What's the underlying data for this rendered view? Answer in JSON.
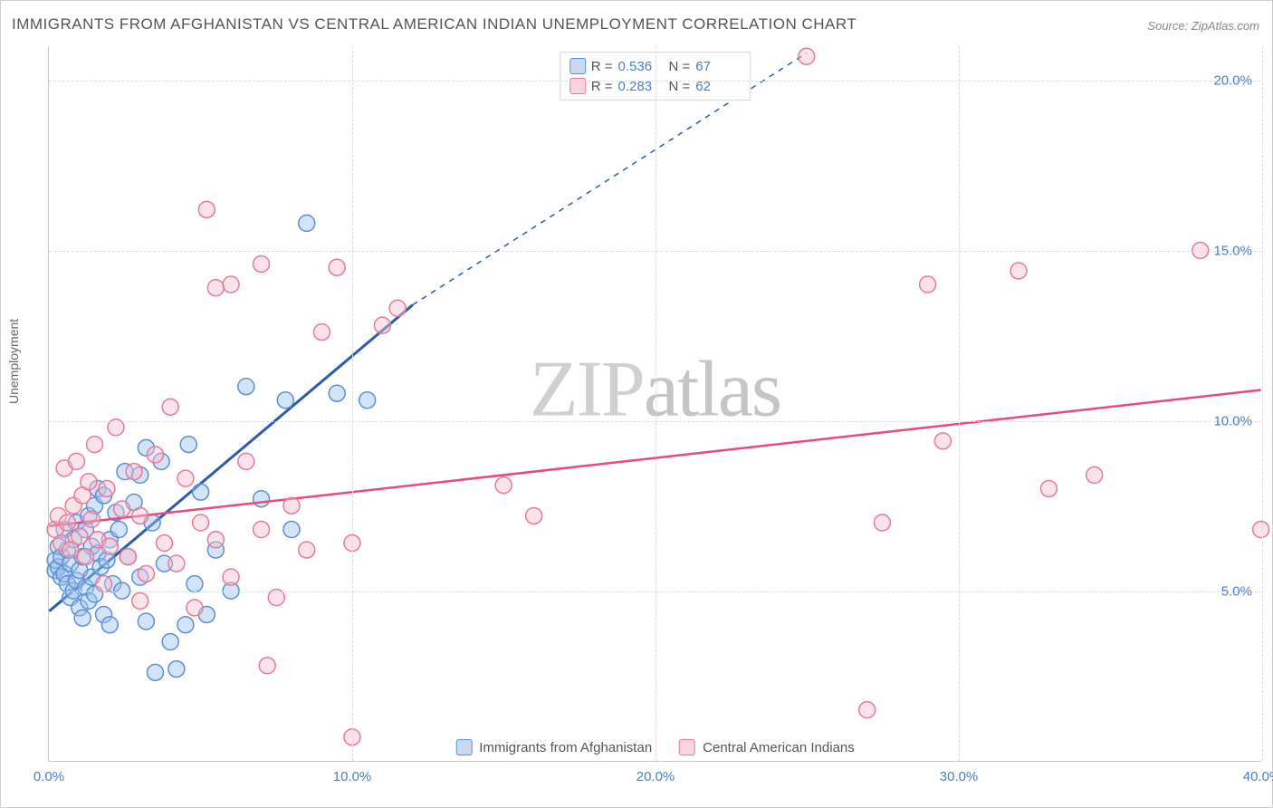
{
  "title": "IMMIGRANTS FROM AFGHANISTAN VS CENTRAL AMERICAN INDIAN UNEMPLOYMENT CORRELATION CHART",
  "source_label": "Source:",
  "source_value": "ZipAtlas.com",
  "watermark": "ZIPatlas",
  "yaxis_title": "Unemployment",
  "chart": {
    "type": "scatter",
    "xlim": [
      0,
      40
    ],
    "ylim": [
      0,
      21
    ],
    "xticks": [
      0,
      10,
      20,
      30,
      40
    ],
    "xtick_labels": [
      "0.0%",
      "10.0%",
      "20.0%",
      "30.0%",
      "40.0%"
    ],
    "yticks": [
      5,
      10,
      15,
      20
    ],
    "ytick_labels": [
      "5.0%",
      "10.0%",
      "15.0%",
      "20.0%"
    ],
    "background_color": "#ffffff",
    "grid_color": "#dcdcdc",
    "grid_style": "dashed",
    "marker_radius": 9,
    "marker_opacity": 0.45,
    "marker_stroke_width": 1.5
  },
  "series": [
    {
      "id": "afghan",
      "label": "Immigrants from Afghanistan",
      "color_fill": "#9ec3ec",
      "color_stroke": "#5b8fd6",
      "trend_color": "#2d5ca8",
      "trend_width": 3,
      "trend_solid_x": [
        0,
        12
      ],
      "trend_solid_y": [
        4.4,
        13.4
      ],
      "trend_dash_x": [
        12,
        25
      ],
      "trend_dash_y": [
        13.4,
        20.8
      ],
      "corr_r": "0.536",
      "corr_n": "67",
      "points": [
        [
          0.2,
          5.6
        ],
        [
          0.2,
          5.9
        ],
        [
          0.3,
          5.7
        ],
        [
          0.3,
          6.3
        ],
        [
          0.4,
          5.4
        ],
        [
          0.4,
          6.0
        ],
        [
          0.5,
          5.5
        ],
        [
          0.5,
          6.8
        ],
        [
          0.6,
          5.2
        ],
        [
          0.6,
          6.2
        ],
        [
          0.7,
          5.8
        ],
        [
          0.7,
          4.8
        ],
        [
          0.8,
          5.0
        ],
        [
          0.8,
          6.5
        ],
        [
          0.9,
          5.3
        ],
        [
          0.9,
          7.0
        ],
        [
          1.0,
          5.6
        ],
        [
          1.0,
          4.5
        ],
        [
          1.1,
          6.0
        ],
        [
          1.1,
          4.2
        ],
        [
          1.2,
          6.8
        ],
        [
          1.2,
          5.1
        ],
        [
          1.3,
          7.2
        ],
        [
          1.3,
          4.7
        ],
        [
          1.4,
          6.3
        ],
        [
          1.4,
          5.4
        ],
        [
          1.5,
          7.5
        ],
        [
          1.5,
          4.9
        ],
        [
          1.6,
          6.1
        ],
        [
          1.6,
          8.0
        ],
        [
          1.7,
          5.7
        ],
        [
          1.8,
          4.3
        ],
        [
          1.8,
          7.8
        ],
        [
          1.9,
          5.9
        ],
        [
          2.0,
          6.5
        ],
        [
          2.0,
          4.0
        ],
        [
          2.1,
          5.2
        ],
        [
          2.2,
          7.3
        ],
        [
          2.3,
          6.8
        ],
        [
          2.4,
          5.0
        ],
        [
          2.5,
          8.5
        ],
        [
          2.6,
          6.0
        ],
        [
          2.8,
          7.6
        ],
        [
          3.0,
          5.4
        ],
        [
          3.0,
          8.4
        ],
        [
          3.2,
          4.1
        ],
        [
          3.2,
          9.2
        ],
        [
          3.4,
          7.0
        ],
        [
          3.5,
          2.6
        ],
        [
          3.7,
          8.8
        ],
        [
          3.8,
          5.8
        ],
        [
          4.0,
          3.5
        ],
        [
          4.2,
          2.7
        ],
        [
          4.5,
          4.0
        ],
        [
          4.6,
          9.3
        ],
        [
          4.8,
          5.2
        ],
        [
          5.0,
          7.9
        ],
        [
          5.2,
          4.3
        ],
        [
          5.5,
          6.2
        ],
        [
          6.0,
          5.0
        ],
        [
          6.5,
          11.0
        ],
        [
          7.0,
          7.7
        ],
        [
          7.8,
          10.6
        ],
        [
          8.0,
          6.8
        ],
        [
          8.5,
          15.8
        ],
        [
          9.5,
          10.8
        ],
        [
          10.5,
          10.6
        ]
      ]
    },
    {
      "id": "cai",
      "label": "Central American Indians",
      "color_fill": "#f4c2ce",
      "color_stroke": "#e67a99",
      "trend_color": "#e84a7a",
      "trend_width": 2.5,
      "trend_solid_x": [
        0,
        40
      ],
      "trend_solid_y": [
        6.9,
        10.9
      ],
      "trend_dash_x": null,
      "trend_dash_y": null,
      "corr_r": "0.283",
      "corr_n": "62",
      "points": [
        [
          0.2,
          6.8
        ],
        [
          0.3,
          7.2
        ],
        [
          0.4,
          6.4
        ],
        [
          0.5,
          8.6
        ],
        [
          0.6,
          7.0
        ],
        [
          0.7,
          6.2
        ],
        [
          0.8,
          7.5
        ],
        [
          0.9,
          8.8
        ],
        [
          1.0,
          6.6
        ],
        [
          1.1,
          7.8
        ],
        [
          1.2,
          6.0
        ],
        [
          1.3,
          8.2
        ],
        [
          1.4,
          7.1
        ],
        [
          1.5,
          9.3
        ],
        [
          1.6,
          6.5
        ],
        [
          1.8,
          5.2
        ],
        [
          1.9,
          8.0
        ],
        [
          2.0,
          6.3
        ],
        [
          2.2,
          9.8
        ],
        [
          2.4,
          7.4
        ],
        [
          2.6,
          6.0
        ],
        [
          2.8,
          8.5
        ],
        [
          3.0,
          4.7
        ],
        [
          3.0,
          7.2
        ],
        [
          3.2,
          5.5
        ],
        [
          3.5,
          9.0
        ],
        [
          3.8,
          6.4
        ],
        [
          4.0,
          10.4
        ],
        [
          4.2,
          5.8
        ],
        [
          4.5,
          8.3
        ],
        [
          4.8,
          4.5
        ],
        [
          5.0,
          7.0
        ],
        [
          5.2,
          16.2
        ],
        [
          5.5,
          6.5
        ],
        [
          5.5,
          13.9
        ],
        [
          6.0,
          5.4
        ],
        [
          6.0,
          14.0
        ],
        [
          6.5,
          8.8
        ],
        [
          7.0,
          6.8
        ],
        [
          7.0,
          14.6
        ],
        [
          7.2,
          2.8
        ],
        [
          7.5,
          4.8
        ],
        [
          8.0,
          7.5
        ],
        [
          8.5,
          6.2
        ],
        [
          9.0,
          12.6
        ],
        [
          9.5,
          14.5
        ],
        [
          10.0,
          6.4
        ],
        [
          10.0,
          0.7
        ],
        [
          11.0,
          12.8
        ],
        [
          11.5,
          13.3
        ],
        [
          15.0,
          8.1
        ],
        [
          16.0,
          7.2
        ],
        [
          25.0,
          20.7
        ],
        [
          27.0,
          1.5
        ],
        [
          27.5,
          7.0
        ],
        [
          29.0,
          14.0
        ],
        [
          29.5,
          9.4
        ],
        [
          32.0,
          14.4
        ],
        [
          33.0,
          8.0
        ],
        [
          34.5,
          8.4
        ],
        [
          38.0,
          15.0
        ],
        [
          40.0,
          6.8
        ]
      ]
    }
  ],
  "legend_top": {
    "r_label": "R =",
    "n_label": "N ="
  },
  "colors": {
    "title_text": "#555555",
    "axis_text": "#4a7ec9",
    "yaxis_label_text": "#666666",
    "border": "#d0d0d0",
    "watermark": "#d0d0d0"
  }
}
